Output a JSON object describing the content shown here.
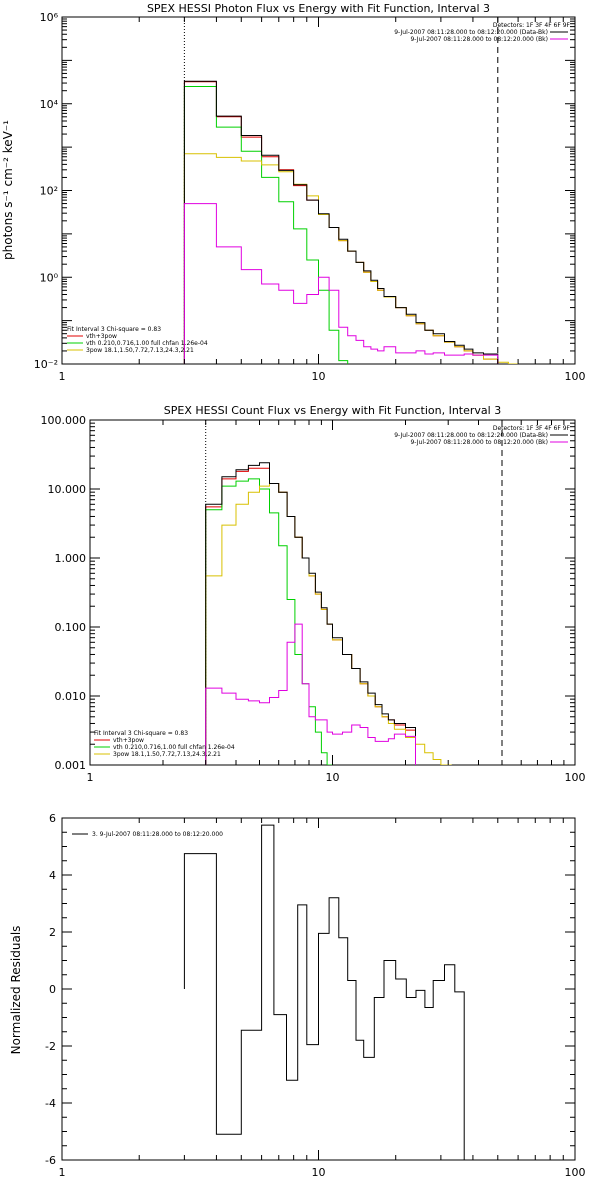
{
  "chart_data": [
    {
      "type": "line",
      "title": "SPEX HESSI Photon Flux vs Energy with Fit Function, Interval 3",
      "ylabel": "photons s⁻¹ cm⁻² keV⁻¹",
      "xlabel": "",
      "xscale": "log",
      "yscale": "log",
      "xlim": [
        1,
        100
      ],
      "ylim": [
        0.01,
        1000000
      ],
      "xticks": [
        1,
        10,
        100
      ],
      "xtick_labels": [
        "1",
        "10",
        "100"
      ],
      "yticks": [
        0.01,
        1,
        100,
        10000,
        1000000
      ],
      "ytick_labels": [
        "10⁻²",
        "10⁰",
        "10²",
        "10⁴",
        "10⁶"
      ],
      "vlines": [
        {
          "x": 3.0,
          "style": "dotted"
        },
        {
          "x": 50.0,
          "style": "dashed"
        }
      ],
      "legend_top": {
        "placement": "top-right",
        "header": "Detectors: 1F 3F 4F 6F 9F",
        "entries": [
          {
            "text": "9-Jul-2007 08:11:28.000 to 08:12:20.000 (Data-Bk)",
            "color": "#000000"
          },
          {
            "text": "9-Jul-2007 08:11:28.000 to 08:12:20.000 (Bk)",
            "color": "#e000e0"
          }
        ]
      },
      "legend_bottom": {
        "placement": "bottom-left",
        "header": "Fit Interval 3   Chi-square = 0.83",
        "entries": [
          {
            "text": "vth+3pow",
            "color": "#e00000"
          },
          {
            "text": "vth 0.210,0.716,1.00  full chfan 1.26e-04",
            "color": "#00d000"
          },
          {
            "text": "3pow 18.1,1.50,7.72,7.13,24.3,2.21",
            "color": "#d8c000"
          }
        ]
      },
      "bin_edges": [
        3.0,
        3.5,
        4.0,
        4.5,
        5.0,
        5.5,
        6.0,
        6.5,
        7.0,
        7.5,
        8.0,
        8.5,
        9.0,
        9.5,
        10.0,
        11.0,
        12.0,
        13.0,
        14.0,
        15.0,
        16.0,
        17.0,
        18.0,
        20.0,
        22.0,
        24.0,
        26.0,
        28.0,
        31.0,
        34.0,
        37.0,
        40.0,
        44.0,
        50.0,
        55.0,
        60.0
      ],
      "series": [
        {
          "name": "vth+3pow",
          "color": "#e00000",
          "step": true,
          "values": [
            32000,
            32000,
            5000,
            5000,
            1700,
            1700,
            600,
            600,
            300,
            300,
            130,
            130,
            60,
            60,
            28,
            14,
            7,
            4,
            2.2,
            1.3,
            0.8,
            0.5,
            0.35,
            0.2,
            0.13,
            0.085,
            0.06,
            0.045,
            0.032,
            0.025,
            0.02,
            0.016,
            0.013,
            null,
            null
          ]
        },
        {
          "name": "vth 0.210,0.716,1.00  full chfan 1.26e-04",
          "color": "#00d000",
          "step": true,
          "values": [
            25000,
            25000,
            2900,
            2900,
            800,
            800,
            200,
            200,
            55,
            55,
            13,
            13,
            2.5,
            2.5,
            0.5,
            0.06,
            0.012,
            null,
            null,
            null,
            null,
            null,
            null,
            null,
            null,
            null,
            null,
            null,
            null,
            null,
            null,
            null,
            null,
            null,
            null
          ]
        },
        {
          "name": "3pow 18.1,1.50,7.72,7.13,24.3,2.21",
          "color": "#d8c000",
          "step": true,
          "values": [
            700,
            700,
            580,
            580,
            480,
            480,
            390,
            390,
            270,
            270,
            140,
            140,
            75,
            75,
            28,
            14,
            7,
            4,
            2.2,
            1.3,
            0.8,
            0.5,
            0.35,
            0.2,
            0.13,
            0.085,
            0.06,
            0.045,
            0.032,
            0.025,
            0.02,
            0.016,
            0.013,
            0.011,
            0.008
          ]
        },
        {
          "name": "Data-Bk",
          "color": "#000000",
          "step": true,
          "values": [
            33000,
            33000,
            5200,
            5200,
            1850,
            1850,
            650,
            650,
            290,
            290,
            135,
            135,
            60,
            60,
            29,
            14,
            7.5,
            4,
            2.2,
            1.4,
            0.85,
            0.55,
            0.36,
            0.2,
            0.14,
            0.09,
            0.06,
            0.05,
            0.033,
            0.027,
            0.022,
            0.018,
            0.017,
            null,
            null
          ]
        },
        {
          "name": "Bk",
          "color": "#e000e0",
          "step": true,
          "values": [
            50,
            50,
            5,
            5,
            1.5,
            1.5,
            0.7,
            0.7,
            0.5,
            0.5,
            0.25,
            0.25,
            0.4,
            0.4,
            1.0,
            0.5,
            0.07,
            0.045,
            0.035,
            0.025,
            0.022,
            0.02,
            0.025,
            0.018,
            0.018,
            0.02,
            0.017,
            0.018,
            0.016,
            0.016,
            0.017,
            0.016,
            0.016,
            null,
            null
          ]
        }
      ]
    },
    {
      "type": "line",
      "title": "SPEX HESSI Count Flux vs Energy with Fit Function, Interval 3",
      "ylabel": "",
      "xlabel": "",
      "xscale": "log",
      "yscale": "log",
      "xlim": [
        1,
        100
      ],
      "ylim": [
        0.001,
        100
      ],
      "xticks": [
        1,
        10,
        100
      ],
      "xtick_labels": [
        "1",
        "10",
        "100"
      ],
      "yticks": [
        0.001,
        0.01,
        0.1,
        1,
        10,
        100
      ],
      "ytick_labels": [
        "0.001",
        "0.010",
        "0.100",
        "1.000",
        "10.000",
        "100.000"
      ],
      "vlines": [
        {
          "x": 3.0,
          "style": "dotted"
        },
        {
          "x": 50.0,
          "style": "dashed"
        }
      ],
      "legend_top": {
        "placement": "top-right",
        "header": "Detectors: 1F 3F 4F 6F 9F",
        "entries": [
          {
            "text": "9-Jul-2007 08:11:28.000 to 08:12:20.000 (Data-Bk)",
            "color": "#000000"
          },
          {
            "text": "9-Jul-2007 08:11:28.000 to 08:12:20.000 (Bk)",
            "color": "#e000e0"
          }
        ]
      },
      "legend_bottom": {
        "placement": "bottom-left",
        "header": "Fit Interval 3   Chi-square = 0.83",
        "entries": [
          {
            "text": "vth+3pow",
            "color": "#e00000"
          },
          {
            "text": "vth 0.210,0.716,1.00  full chfan 1.26e-04",
            "color": "#00d000"
          },
          {
            "text": "3pow 18.1,1.50,7.72,7.13,24.3,2.21",
            "color": "#d8c000"
          }
        ]
      },
      "bin_edges": [
        3.0,
        3.5,
        4.0,
        4.5,
        5.0,
        5.5,
        6.0,
        6.5,
        7.0,
        7.5,
        8.0,
        8.5,
        9.0,
        9.5,
        10.0,
        11.0,
        12.0,
        13.0,
        14.0,
        15.0,
        16.0,
        17.0,
        18.0,
        20.0,
        22.0,
        24.0,
        26.0,
        28.0,
        31.0,
        34.0,
        37.0,
        40.0,
        44.0,
        50.0,
        55.0,
        60.0,
        66.0,
        72.0,
        80.0
      ],
      "series": [
        {
          "name": "vth+3pow",
          "color": "#e00000",
          "step": true,
          "values": [
            5.5,
            14,
            18,
            20,
            20,
            12,
            9,
            4,
            2.0,
            1.0,
            0.55,
            0.3,
            0.18,
            0.11,
            0.065,
            0.04,
            0.025,
            0.015,
            0.01,
            0.007,
            0.005,
            0.0045,
            0.0038,
            0.0032,
            null,
            null,
            null,
            null,
            null,
            null,
            null,
            null,
            null,
            null,
            null,
            null,
            null,
            null
          ]
        },
        {
          "name": "vth 0.210,0.716,1.00  full chfan 1.26e-04",
          "color": "#00d000",
          "step": true,
          "values": [
            5.0,
            11,
            13,
            14,
            10,
            4.5,
            1.5,
            0.25,
            0.04,
            0.015,
            0.007,
            0.003,
            0.0015,
            0.001,
            null,
            null,
            null,
            null,
            null,
            null,
            null,
            null,
            null,
            null,
            null,
            null,
            null,
            null,
            null,
            null,
            null,
            null,
            null,
            null,
            null,
            null,
            null,
            null
          ]
        },
        {
          "name": "3pow 18.1,1.50,7.72,7.13,24.3,2.21",
          "color": "#d8c000",
          "step": true,
          "values": [
            0.55,
            3.0,
            6.0,
            9.0,
            11,
            12,
            9,
            4,
            2.0,
            1.0,
            0.55,
            0.3,
            0.18,
            0.11,
            0.065,
            0.04,
            0.025,
            0.015,
            0.01,
            0.007,
            0.005,
            0.004,
            0.0033,
            0.0025,
            0.002,
            0.0015,
            0.0012,
            0.001,
            null,
            null,
            null,
            null,
            null,
            null,
            null,
            null,
            null,
            null
          ]
        },
        {
          "name": "Data-Bk",
          "color": "#000000",
          "step": true,
          "values": [
            6.0,
            15,
            19,
            22,
            24,
            12,
            9,
            4,
            2.0,
            1.0,
            0.6,
            0.32,
            0.19,
            0.11,
            0.07,
            0.04,
            0.025,
            0.016,
            0.011,
            0.0075,
            0.0055,
            0.0045,
            0.004,
            0.0035,
            null,
            null,
            null,
            null,
            null,
            null,
            null,
            null,
            null,
            null,
            null,
            null,
            null,
            null
          ]
        },
        {
          "name": "Bk",
          "color": "#e000e0",
          "step": true,
          "values": [
            0.013,
            0.011,
            0.009,
            0.0085,
            0.008,
            0.0095,
            0.012,
            0.06,
            0.11,
            0.015,
            0.005,
            0.0045,
            0.0045,
            0.003,
            0.0028,
            0.003,
            0.0038,
            0.0035,
            0.0025,
            0.0022,
            0.0022,
            0.0024,
            0.0028,
            0.0026,
            null,
            null,
            null,
            null,
            null,
            null,
            null,
            null,
            null,
            null,
            null,
            null,
            null,
            null
          ]
        }
      ],
      "bin_index_note_edges": [
        3.0,
        3.5,
        4.0,
        4.8,
        5.8,
        7.0,
        7.5,
        8.5,
        9.5,
        10.0,
        11.0,
        12.0,
        13.0,
        14.0,
        15.0,
        16.0,
        17.0,
        18.0,
        20.0,
        22.0,
        24.0,
        26.0,
        28.0,
        31.0,
        34.0,
        37.0,
        40.0,
        44.0,
        50.0
      ]
    },
    {
      "type": "line",
      "title": "",
      "ylabel": "Normalized Residuals",
      "xlabel": "",
      "xscale": "log",
      "yscale": "linear",
      "xlim": [
        1,
        100
      ],
      "ylim": [
        -6,
        6
      ],
      "xticks": [
        1,
        10,
        100
      ],
      "xtick_labels": [
        "1",
        "10",
        "100"
      ],
      "yticks": [
        -6,
        -4,
        -2,
        0,
        2,
        4,
        6
      ],
      "ytick_labels": [
        "-6",
        "-4",
        "-2",
        "0",
        "2",
        "4",
        "6"
      ],
      "legend": {
        "placement": "top-left",
        "text": "3.  9-Jul-2007 08:11:28.000 to 08:12:20.000"
      },
      "bin_edges": [
        3.0,
        4.0,
        5.0,
        6.0,
        6.7,
        7.5,
        8.3,
        9.0,
        10.0,
        11.0,
        12.0,
        13.0,
        14.0,
        15.0,
        16.5,
        18.0,
        20.0,
        22.0,
        24.0,
        26.0,
        28.0,
        31.0,
        34.0,
        37.0,
        40.0,
        44.0,
        50.0
      ],
      "series": [
        {
          "name": "",
          "color": "#000000",
          "step": true,
          "values": [
            4.75,
            -5.1,
            -1.45,
            5.75,
            -0.9,
            -3.2,
            2.95,
            -1.95,
            1.95,
            3.2,
            1.8,
            0.3,
            -1.8,
            -2.4,
            -0.3,
            1.0,
            0.35,
            -0.3,
            -0.05,
            -0.65,
            0.3,
            0.85,
            -0.1,
            null,
            null,
            null
          ]
        }
      ]
    }
  ]
}
